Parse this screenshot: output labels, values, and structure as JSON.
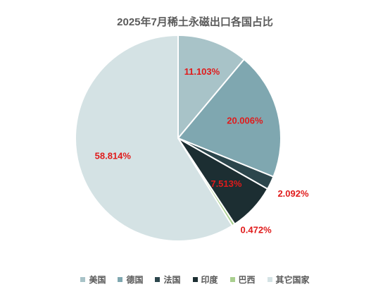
{
  "chart_data": {
    "type": "pie",
    "title": "2025年7月稀土永磁出口各国占比",
    "categories": [
      "美国",
      "德国",
      "法国",
      "印度",
      "巴西",
      "其它国家"
    ],
    "values": [
      11.103,
      20.006,
      2.092,
      7.513,
      0.472,
      58.814
    ],
    "data_labels": [
      "11.103%",
      "20.006%",
      "2.092%",
      "7.513%",
      "0.472%",
      "58.814%"
    ],
    "colors": [
      "#a8c3c8",
      "#7fa7b0",
      "#2c464c",
      "#1c2e32",
      "#a9cf8f",
      "#d4e2e4"
    ],
    "label_color": "#e01b1b",
    "legend_position": "bottom",
    "start_angle_deg": 0,
    "direction": "clockwise"
  }
}
